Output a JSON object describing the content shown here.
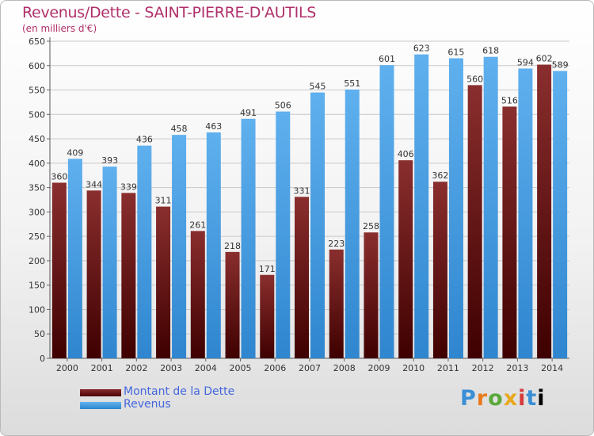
{
  "chart_data": {
    "type": "bar",
    "title": "Revenus/Dette - SAINT-PIERRE-D'AUTILS",
    "subtitle": "(en milliers d'€)",
    "categories": [
      "2000",
      "2001",
      "2002",
      "2003",
      "2004",
      "2005",
      "2006",
      "2007",
      "2008",
      "2009",
      "2010",
      "2011",
      "2012",
      "2013",
      "2014"
    ],
    "series": [
      {
        "name": "Montant de la Dette",
        "values": [
          360,
          344,
          339,
          311,
          261,
          218,
          171,
          331,
          223,
          258,
          406,
          362,
          560,
          516,
          602
        ],
        "color": "#6b1a1a"
      },
      {
        "name": "Revenus",
        "values": [
          409,
          393,
          436,
          458,
          463,
          491,
          506,
          545,
          551,
          601,
          623,
          615,
          618,
          594,
          589
        ],
        "color": "#4aa2e6"
      }
    ],
    "ylim": [
      0,
      650
    ],
    "yticks": [
      0,
      50,
      100,
      150,
      200,
      250,
      300,
      350,
      400,
      450,
      500,
      550,
      600,
      650
    ],
    "grid": true,
    "legend": "bottom-left"
  },
  "legend": {
    "debt_label": "Montant de la Dette",
    "revenue_label": "Revenus"
  },
  "logo": {
    "letters": [
      "P",
      "r",
      "o",
      "x",
      "i",
      "t",
      "i"
    ]
  }
}
